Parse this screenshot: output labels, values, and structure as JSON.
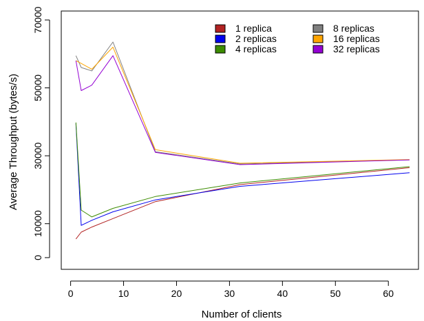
{
  "chart_data": {
    "type": "line",
    "xlabel": "Number of clients",
    "ylabel": "Average Throughput (bytes/s)",
    "xlim": [
      0,
      65
    ],
    "ylim": [
      0,
      72000
    ],
    "x_ticks": [
      0,
      10,
      20,
      30,
      40,
      50,
      60
    ],
    "y_ticks": [
      0,
      10000,
      30000,
      50000,
      70000
    ],
    "grid": false,
    "legend_position": "top-right",
    "x": [
      1,
      2,
      4,
      8,
      16,
      32,
      64
    ],
    "series": [
      {
        "name": "1 replica",
        "color": "#b22222",
        "values": [
          5500,
          7500,
          9000,
          11500,
          16500,
          21500,
          26500
        ]
      },
      {
        "name": "2 replicas",
        "color": "#0000ee",
        "values": [
          39500,
          9500,
          11000,
          13500,
          17000,
          21000,
          25000
        ]
      },
      {
        "name": "4 replicas",
        "color": "#3c8c00",
        "values": [
          39800,
          14000,
          12000,
          14500,
          18000,
          22000,
          26800
        ]
      },
      {
        "name": "8 replicas",
        "color": "#808080",
        "values": [
          59500,
          56000,
          55000,
          63500,
          31200,
          27600,
          28800
        ]
      },
      {
        "name": "16 replicas",
        "color": "#ffa500",
        "values": [
          58000,
          57200,
          55500,
          62000,
          31800,
          27800,
          28900
        ]
      },
      {
        "name": "32 replicas",
        "color": "#9400d3",
        "values": [
          58000,
          49200,
          50800,
          59500,
          31000,
          27400,
          28800
        ]
      }
    ]
  }
}
